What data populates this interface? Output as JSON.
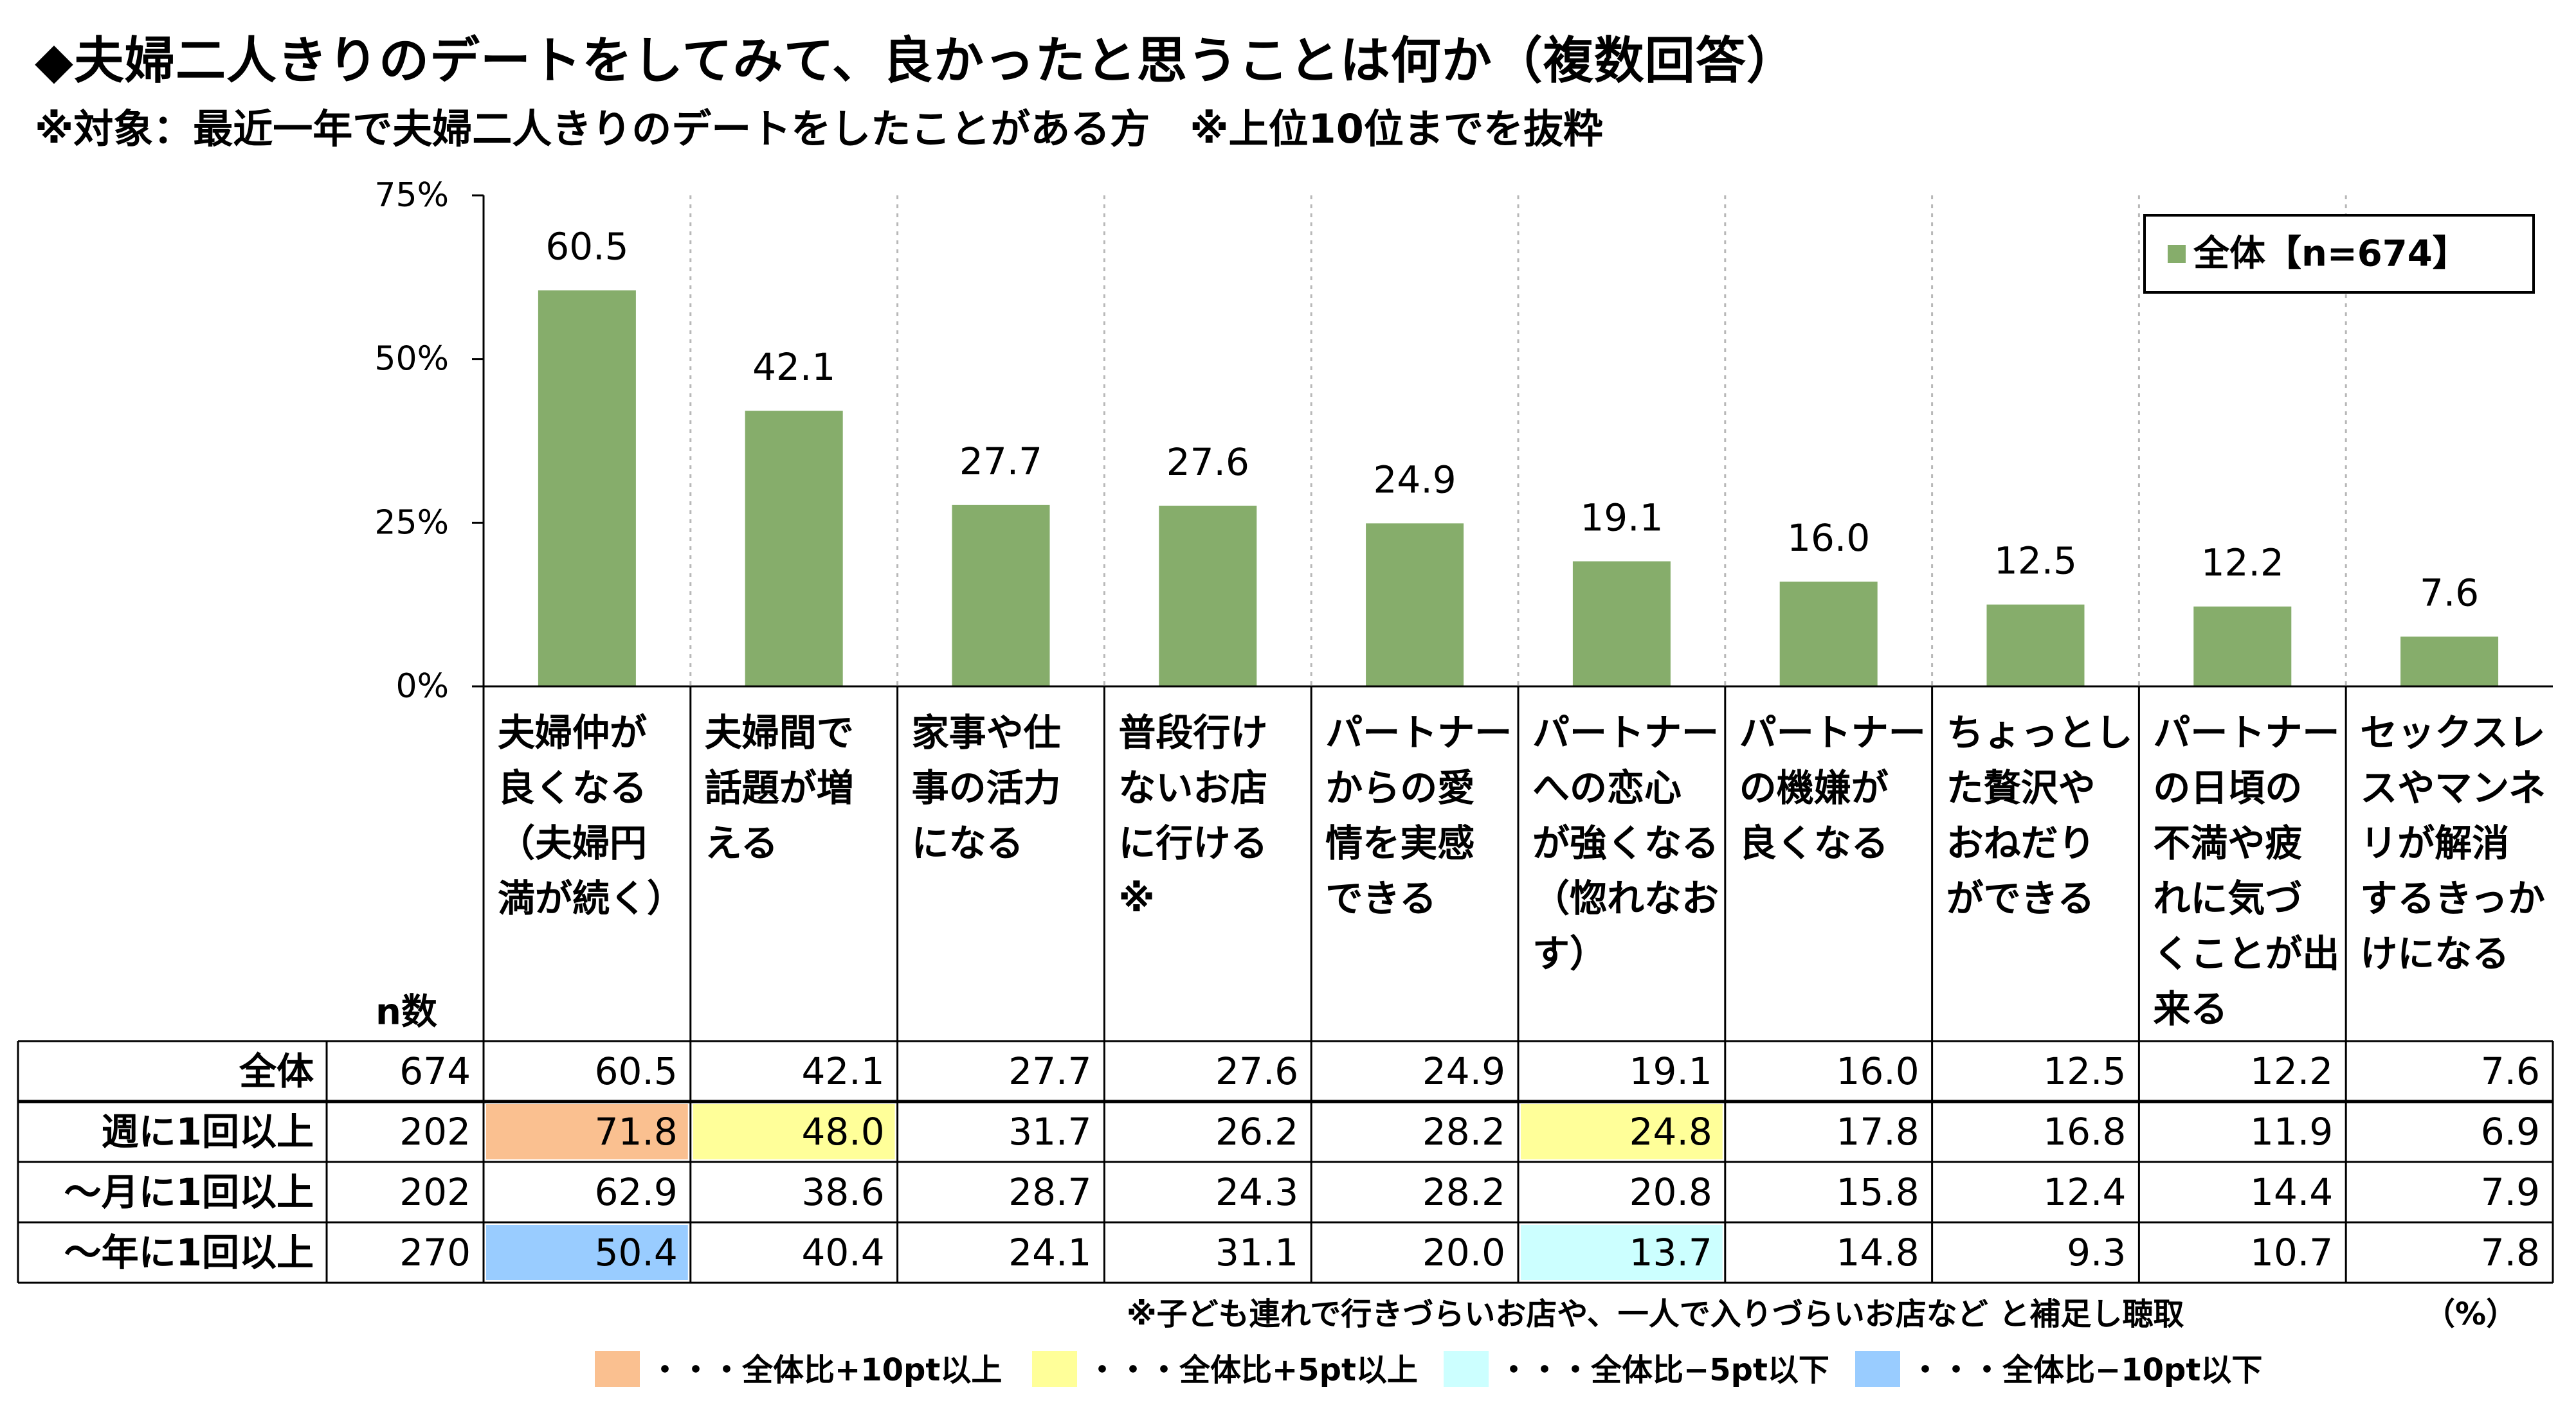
{
  "title": "◆夫婦二人きりのデートをしてみて、良かったと思うことは何か（複数回答）",
  "subtitle": "※対象：最近一年で夫婦二人きりのデートをしたことがある方　※上位10位までを抜粋",
  "legend_label": "全体【n=674】",
  "n_header": "n数",
  "footnote": "※子ども連れで行きづらいお店や、一人で入りづらいお店など と補足し聴取",
  "unit_note": "（%）",
  "colors": {
    "bar": "#86ad6b",
    "plus10": "#fac090",
    "plus5": "#ffff99",
    "minus5": "#ccffff",
    "minus10": "#99ccff"
  },
  "highlight_legend": [
    {
      "key": "plus10",
      "label": "・・・全体比+10pt以上"
    },
    {
      "key": "plus5",
      "label": "・・・全体比+5pt以上"
    },
    {
      "key": "minus5",
      "label": "・・・全体比−5pt以下"
    },
    {
      "key": "minus10",
      "label": "・・・全体比−10pt以下"
    }
  ],
  "chart_data": {
    "type": "bar",
    "title": "◆夫婦二人きりのデートをしてみて、良かったと思うことは何か（複数回答）",
    "ylim": [
      0,
      75
    ],
    "yticks": [
      "0%",
      "25%",
      "50%",
      "75%"
    ],
    "ytick_values": [
      0,
      25,
      50,
      75
    ],
    "grid": true,
    "legend_position": "top-right",
    "categories": [
      [
        "夫婦仲が",
        "良くなる",
        "（夫婦円",
        "満が続く）"
      ],
      [
        "夫婦間で",
        "話題が増",
        "える"
      ],
      [
        "家事や仕",
        "事の活力",
        "になる"
      ],
      [
        "普段行け",
        "ないお店",
        "に行ける",
        "※"
      ],
      [
        "パートナー",
        "からの愛",
        "情を実感",
        "できる"
      ],
      [
        "パートナー",
        "への恋心",
        "が強くなる",
        "（惚れなお",
        "す）"
      ],
      [
        "パートナー",
        "の機嫌が",
        "良くなる"
      ],
      [
        "ちょっとし",
        "た贅沢や",
        "おねだり",
        "ができる"
      ],
      [
        "パートナー",
        "の日頃の",
        "不満や疲",
        "れに気づ",
        "くことが出",
        "来る"
      ],
      [
        "セックスレ",
        "スやマンネ",
        "リが解消",
        "するきっか",
        "けになる"
      ]
    ],
    "series": [
      {
        "name": "全体【n=674】",
        "values": [
          60.5,
          42.1,
          27.7,
          27.6,
          24.9,
          19.1,
          16.0,
          12.5,
          12.2,
          7.6
        ]
      }
    ],
    "table": {
      "rows": [
        {
          "label": "全体",
          "n": "674",
          "values": [
            "60.5",
            "42.1",
            "27.7",
            "27.6",
            "24.9",
            "19.1",
            "16.0",
            "12.5",
            "12.2",
            "7.6"
          ],
          "highlights": [
            null,
            null,
            null,
            null,
            null,
            null,
            null,
            null,
            null,
            null
          ]
        },
        {
          "label": "週に1回以上",
          "n": "202",
          "values": [
            "71.8",
            "48.0",
            "31.7",
            "26.2",
            "28.2",
            "24.8",
            "17.8",
            "16.8",
            "11.9",
            "6.9"
          ],
          "highlights": [
            "plus10",
            "plus5",
            null,
            null,
            null,
            "plus5",
            null,
            null,
            null,
            null
          ]
        },
        {
          "label": "〜月に1回以上",
          "n": "202",
          "values": [
            "62.9",
            "38.6",
            "28.7",
            "24.3",
            "28.2",
            "20.8",
            "15.8",
            "12.4",
            "14.4",
            "7.9"
          ],
          "highlights": [
            null,
            null,
            null,
            null,
            null,
            null,
            null,
            null,
            null,
            null
          ]
        },
        {
          "label": "〜年に1回以上",
          "n": "270",
          "values": [
            "50.4",
            "40.4",
            "24.1",
            "31.1",
            "20.0",
            "13.7",
            "14.8",
            "9.3",
            "10.7",
            "7.8"
          ],
          "highlights": [
            "minus10",
            null,
            null,
            null,
            null,
            "minus5",
            null,
            null,
            null,
            null
          ]
        }
      ]
    }
  }
}
